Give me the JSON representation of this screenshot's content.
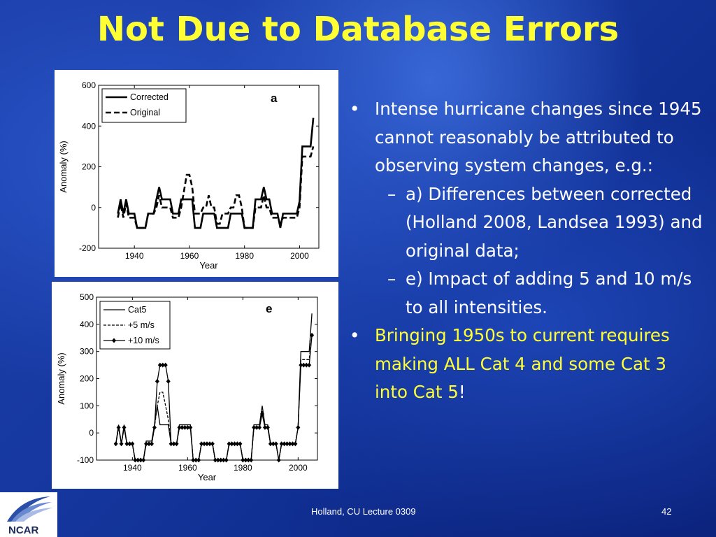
{
  "title": "Not Due to Database Errors",
  "bullets": {
    "b1": "Intense hurricane changes since 1945 cannot reasonably be attributed to observing system changes, e.g.:",
    "b1_sub_a": "a) Differences between corrected (Holland 2008, Landsea 1993) and original data;",
    "b1_sub_e": "e) Impact of adding 5 and 10 m/s to all intensities.",
    "b2_main": "Bringing 1950s to current requires making ALL Cat 4 and some Cat 3 into Cat 5",
    "b2_tail": "!",
    "bullet_char": "•",
    "dash_char": "–"
  },
  "footer": {
    "credit": "Holland, CU Lecture 0309",
    "page": "42"
  },
  "logo_text": "NCAR",
  "colors": {
    "title": "#ffff33",
    "text": "#ffffff",
    "highlight": "#ffff33"
  },
  "chart_data": [
    {
      "type": "line",
      "panel_label": "a",
      "xlabel": "Year",
      "ylabel": "Anomaly (%)",
      "xlim": [
        1927,
        2007
      ],
      "ylim": [
        -200,
        600
      ],
      "xticks": [
        1940,
        1960,
        1980,
        2000
      ],
      "yticks": [
        -200,
        0,
        200,
        400,
        600
      ],
      "legend_position": "top-left",
      "series": [
        {
          "name": "Corrected",
          "style": "solid-thick",
          "x": [
            1934,
            1935,
            1936,
            1937,
            1938,
            1939,
            1940,
            1941,
            1942,
            1943,
            1944,
            1945,
            1946,
            1947,
            1948,
            1949,
            1950,
            1951,
            1952,
            1953,
            1954,
            1955,
            1956,
            1957,
            1958,
            1959,
            1960,
            1961,
            1962,
            1963,
            1964,
            1965,
            1966,
            1967,
            1968,
            1969,
            1970,
            1971,
            1972,
            1973,
            1974,
            1975,
            1976,
            1977,
            1978,
            1979,
            1980,
            1981,
            1982,
            1983,
            1984,
            1985,
            1986,
            1987,
            1988,
            1989,
            1990,
            1991,
            1992,
            1993,
            1994,
            1995,
            1996,
            1997,
            1998,
            1999,
            2000,
            2001,
            2002,
            2003,
            2004,
            2005
          ],
          "y": [
            -30,
            40,
            -30,
            40,
            -30,
            -30,
            -30,
            -100,
            -100,
            -100,
            -100,
            -30,
            -30,
            -30,
            40,
            100,
            40,
            40,
            40,
            40,
            -30,
            -30,
            -30,
            40,
            40,
            40,
            40,
            40,
            -100,
            -100,
            -100,
            -30,
            -30,
            -30,
            -30,
            -30,
            -100,
            -100,
            -100,
            -100,
            -100,
            -30,
            -30,
            -30,
            -30,
            -30,
            -100,
            -100,
            -100,
            -100,
            40,
            40,
            40,
            100,
            40,
            40,
            -30,
            -30,
            -30,
            -100,
            -30,
            -30,
            -30,
            -30,
            -30,
            -30,
            30,
            300,
            300,
            300,
            300,
            440
          ]
        },
        {
          "name": "Original",
          "style": "dashed-thick",
          "x": [
            1934,
            1935,
            1936,
            1937,
            1938,
            1939,
            1940,
            1941,
            1942,
            1943,
            1944,
            1945,
            1946,
            1947,
            1948,
            1949,
            1950,
            1951,
            1952,
            1953,
            1954,
            1955,
            1956,
            1957,
            1958,
            1959,
            1960,
            1961,
            1962,
            1963,
            1964,
            1965,
            1966,
            1967,
            1968,
            1969,
            1970,
            1971,
            1972,
            1973,
            1974,
            1975,
            1976,
            1977,
            1978,
            1979,
            1980,
            1981,
            1982,
            1983,
            1984,
            1985,
            1986,
            1987,
            1988,
            1989,
            1990,
            1991,
            1992,
            1993,
            1994,
            1995,
            1996,
            1997,
            1998,
            1999,
            2000,
            2001,
            2002,
            2003,
            2004,
            2005
          ],
          "y": [
            -50,
            20,
            -50,
            20,
            -50,
            -50,
            -50,
            -100,
            -100,
            -100,
            -100,
            -30,
            -30,
            -30,
            0,
            60,
            0,
            0,
            0,
            0,
            -50,
            -50,
            -50,
            0,
            80,
            160,
            160,
            100,
            -30,
            -30,
            -30,
            0,
            0,
            60,
            0,
            0,
            -80,
            -80,
            -30,
            -30,
            -30,
            0,
            0,
            60,
            60,
            0,
            -100,
            -100,
            -100,
            -100,
            0,
            0,
            0,
            60,
            0,
            0,
            -50,
            -50,
            -50,
            -80,
            -50,
            -50,
            -50,
            -50,
            -50,
            -50,
            0,
            250,
            250,
            250,
            250,
            300
          ]
        }
      ]
    },
    {
      "type": "line",
      "panel_label": "e",
      "xlabel": "Year",
      "ylabel": "Anomaly (%)",
      "xlim": [
        1927,
        2007
      ],
      "ylim": [
        -100,
        500
      ],
      "xticks": [
        1940,
        1960,
        1980,
        2000
      ],
      "yticks": [
        -100,
        0,
        100,
        200,
        300,
        400,
        500
      ],
      "legend_position": "top-left",
      "series": [
        {
          "name": "Cat5",
          "style": "solid",
          "x": [
            1934,
            1935,
            1936,
            1937,
            1938,
            1939,
            1940,
            1941,
            1942,
            1943,
            1944,
            1945,
            1946,
            1947,
            1948,
            1949,
            1950,
            1951,
            1952,
            1953,
            1954,
            1955,
            1956,
            1957,
            1958,
            1959,
            1960,
            1961,
            1962,
            1963,
            1964,
            1965,
            1966,
            1967,
            1968,
            1969,
            1970,
            1971,
            1972,
            1973,
            1974,
            1975,
            1976,
            1977,
            1978,
            1979,
            1980,
            1981,
            1982,
            1983,
            1984,
            1985,
            1986,
            1987,
            1988,
            1989,
            1990,
            1991,
            1992,
            1993,
            1994,
            1995,
            1996,
            1997,
            1998,
            1999,
            2000,
            2001,
            2002,
            2003,
            2004,
            2005
          ],
          "y": [
            -40,
            30,
            -40,
            30,
            -40,
            -40,
            -40,
            -100,
            -100,
            -100,
            -100,
            -30,
            -30,
            -30,
            30,
            100,
            30,
            30,
            30,
            30,
            -40,
            -40,
            -40,
            30,
            30,
            30,
            30,
            30,
            -100,
            -100,
            -100,
            -40,
            -40,
            -40,
            -40,
            -40,
            -100,
            -100,
            -100,
            -100,
            -100,
            -40,
            -40,
            -40,
            -40,
            -40,
            -100,
            -100,
            -100,
            -100,
            30,
            30,
            30,
            100,
            30,
            30,
            -40,
            -40,
            -40,
            -100,
            -40,
            -40,
            -40,
            -40,
            -40,
            -40,
            20,
            300,
            300,
            300,
            300,
            440
          ]
        },
        {
          "name": "+5 m/s",
          "style": "dashed",
          "x": [
            1934,
            1935,
            1936,
            1937,
            1938,
            1939,
            1940,
            1941,
            1942,
            1943,
            1944,
            1945,
            1946,
            1947,
            1948,
            1949,
            1950,
            1951,
            1952,
            1953,
            1954,
            1955,
            1956,
            1957,
            1958,
            1959,
            1960,
            1961,
            1962,
            1963,
            1964,
            1965,
            1966,
            1967,
            1968,
            1969,
            1970,
            1971,
            1972,
            1973,
            1974,
            1975,
            1976,
            1977,
            1978,
            1979,
            1980,
            1981,
            1982,
            1983,
            1984,
            1985,
            1986,
            1987,
            1988,
            1989,
            1990,
            1991,
            1992,
            1993,
            1994,
            1995,
            1996,
            1997,
            1998,
            1999,
            2000,
            2001,
            2002,
            2003,
            2004,
            2005
          ],
          "y": [
            -40,
            20,
            -40,
            20,
            -40,
            -40,
            -40,
            -100,
            -100,
            -100,
            -100,
            -40,
            -40,
            -40,
            20,
            100,
            150,
            150,
            100,
            50,
            -40,
            -40,
            -40,
            20,
            20,
            20,
            20,
            20,
            -100,
            -100,
            -100,
            -40,
            -40,
            -40,
            -40,
            -40,
            -100,
            -100,
            -100,
            -100,
            -100,
            -40,
            -40,
            -40,
            -40,
            -40,
            -100,
            -100,
            -100,
            -100,
            20,
            20,
            20,
            80,
            20,
            20,
            -40,
            -40,
            -40,
            -100,
            -40,
            -40,
            -40,
            -40,
            -40,
            -40,
            20,
            270,
            270,
            270,
            270,
            360
          ]
        },
        {
          "name": "+10 m/s",
          "style": "solid-with-diamond-markers",
          "x": [
            1934,
            1935,
            1936,
            1937,
            1938,
            1939,
            1940,
            1941,
            1942,
            1943,
            1944,
            1945,
            1946,
            1947,
            1948,
            1949,
            1950,
            1951,
            1952,
            1953,
            1954,
            1955,
            1956,
            1957,
            1958,
            1959,
            1960,
            1961,
            1962,
            1963,
            1964,
            1965,
            1966,
            1967,
            1968,
            1969,
            1970,
            1971,
            1972,
            1973,
            1974,
            1975,
            1976,
            1977,
            1978,
            1979,
            1980,
            1981,
            1982,
            1983,
            1984,
            1985,
            1986,
            1987,
            1988,
            1989,
            1990,
            1991,
            1992,
            1993,
            1994,
            1995,
            1996,
            1997,
            1998,
            1999,
            2000,
            2001,
            2002,
            2003,
            2004,
            2005
          ],
          "y": [
            -40,
            20,
            -40,
            20,
            -40,
            -40,
            -40,
            -100,
            -100,
            -100,
            -100,
            -40,
            -40,
            -40,
            20,
            190,
            250,
            250,
            250,
            190,
            -40,
            -40,
            -40,
            20,
            20,
            20,
            20,
            20,
            -100,
            -100,
            -100,
            -40,
            -40,
            -40,
            -40,
            -40,
            -100,
            -100,
            -100,
            -100,
            -100,
            -40,
            -40,
            -40,
            -40,
            -40,
            -100,
            -100,
            -100,
            -100,
            20,
            20,
            20,
            70,
            20,
            20,
            -40,
            -40,
            -40,
            -100,
            -40,
            -40,
            -40,
            -40,
            -40,
            -40,
            20,
            250,
            250,
            250,
            250,
            360
          ]
        }
      ]
    }
  ]
}
